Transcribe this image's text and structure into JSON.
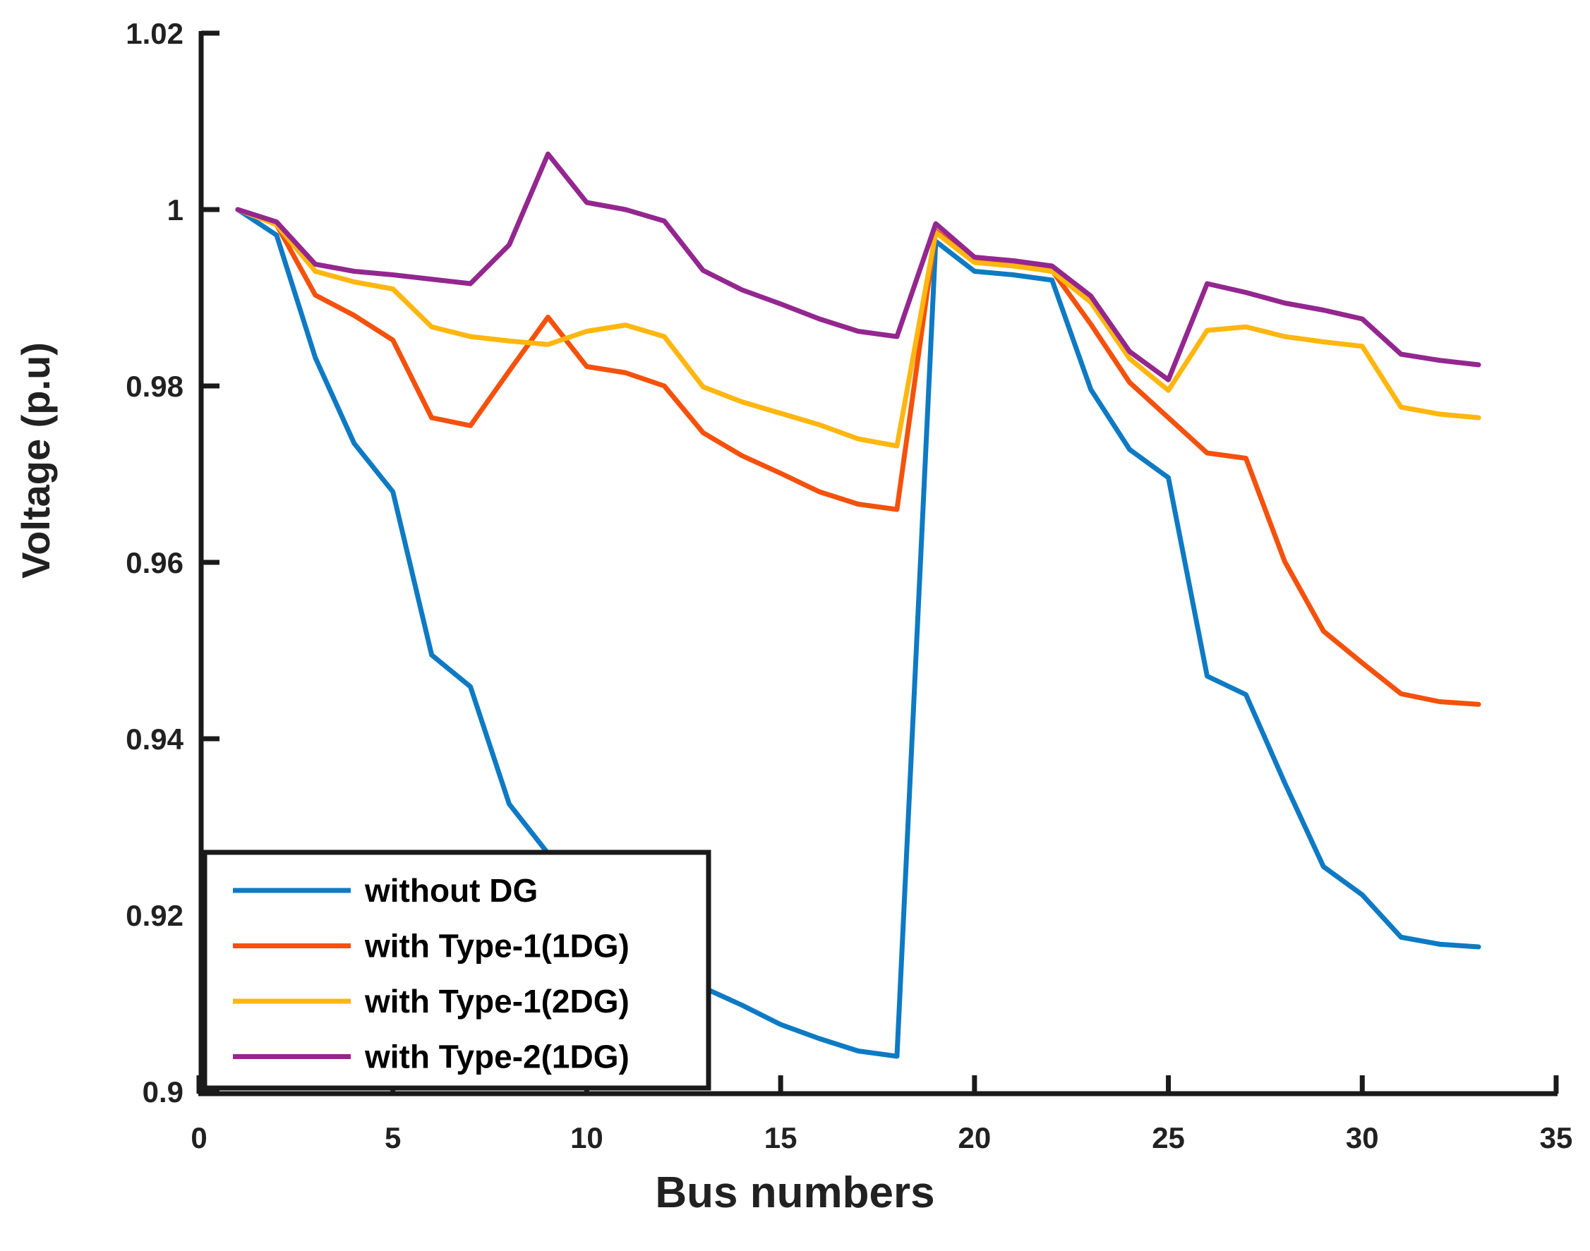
{
  "chart_data": {
    "type": "line",
    "title": "",
    "xlabel": "Bus numbers",
    "ylabel": "Voltage (p.u)",
    "xlim": [
      0,
      35
    ],
    "ylim": [
      0.9,
      1.02
    ],
    "x_ticks": [
      0,
      5,
      10,
      15,
      20,
      25,
      30,
      35
    ],
    "x_tick_labels": [
      "0",
      "5",
      "10",
      "15",
      "20",
      "25",
      "30",
      "35"
    ],
    "y_ticks": [
      0.9,
      0.92,
      0.94,
      0.96,
      0.98,
      1.0,
      1.02
    ],
    "y_tick_labels": [
      "0.9",
      "0.92",
      "0.94",
      "0.96",
      "0.98",
      "1",
      "1.02"
    ],
    "grid": false,
    "legend_position": "lower-left",
    "axis_color": "#1a1a1a",
    "x": [
      1,
      2,
      3,
      4,
      5,
      6,
      7,
      8,
      9,
      10,
      11,
      12,
      13,
      14,
      15,
      16,
      17,
      18,
      19,
      20,
      21,
      22,
      23,
      24,
      25,
      26,
      27,
      28,
      29,
      30,
      31,
      32,
      33
    ],
    "series": [
      {
        "name": "without DG",
        "color": "#0E7AC4",
        "values": [
          1.0,
          0.9971,
          0.9832,
          0.9735,
          0.968,
          0.9495,
          0.9459,
          0.9326,
          0.927,
          0.9207,
          0.9199,
          0.9183,
          0.9118,
          0.9098,
          0.9076,
          0.906,
          0.9046,
          0.904,
          0.9964,
          0.993,
          0.9926,
          0.992,
          0.9796,
          0.9728,
          0.9696,
          0.9471,
          0.945,
          0.935,
          0.9255,
          0.9223,
          0.9175,
          0.9167,
          0.9164
        ]
      },
      {
        "name": "with Type-1(1DG)",
        "color": "#F4510C",
        "values": [
          1.0,
          0.9983,
          0.9903,
          0.988,
          0.9852,
          0.9764,
          0.9755,
          0.9817,
          0.9878,
          0.9822,
          0.9815,
          0.98,
          0.9747,
          0.9721,
          0.9701,
          0.968,
          0.9666,
          0.966,
          0.9976,
          0.9941,
          0.9937,
          0.9931,
          0.987,
          0.9804,
          0.9764,
          0.9724,
          0.9718,
          0.9601,
          0.9522,
          0.9486,
          0.9451,
          0.9442,
          0.9439
        ]
      },
      {
        "name": "with Type-1(2DG)",
        "color": "#FFB60F",
        "values": [
          1.0,
          0.9983,
          0.993,
          0.9918,
          0.991,
          0.9867,
          0.9856,
          0.9851,
          0.9847,
          0.9862,
          0.9869,
          0.9856,
          0.9799,
          0.9782,
          0.9769,
          0.9756,
          0.974,
          0.9732,
          0.9974,
          0.994,
          0.9936,
          0.993,
          0.9895,
          0.9831,
          0.9795,
          0.9863,
          0.9867,
          0.9856,
          0.985,
          0.9845,
          0.9776,
          0.9768,
          0.9764
        ]
      },
      {
        "name": "with Type-2(1DG)",
        "color": "#93278F",
        "values": [
          1.0,
          0.9986,
          0.9938,
          0.993,
          0.9926,
          0.9921,
          0.9916,
          0.996,
          1.0063,
          1.0008,
          1.0,
          0.9987,
          0.9931,
          0.9909,
          0.9893,
          0.9876,
          0.9862,
          0.9856,
          0.9984,
          0.9946,
          0.9942,
          0.9936,
          0.9902,
          0.9839,
          0.9807,
          0.9916,
          0.9906,
          0.9894,
          0.9886,
          0.9876,
          0.9836,
          0.9829,
          0.9824
        ]
      }
    ]
  }
}
